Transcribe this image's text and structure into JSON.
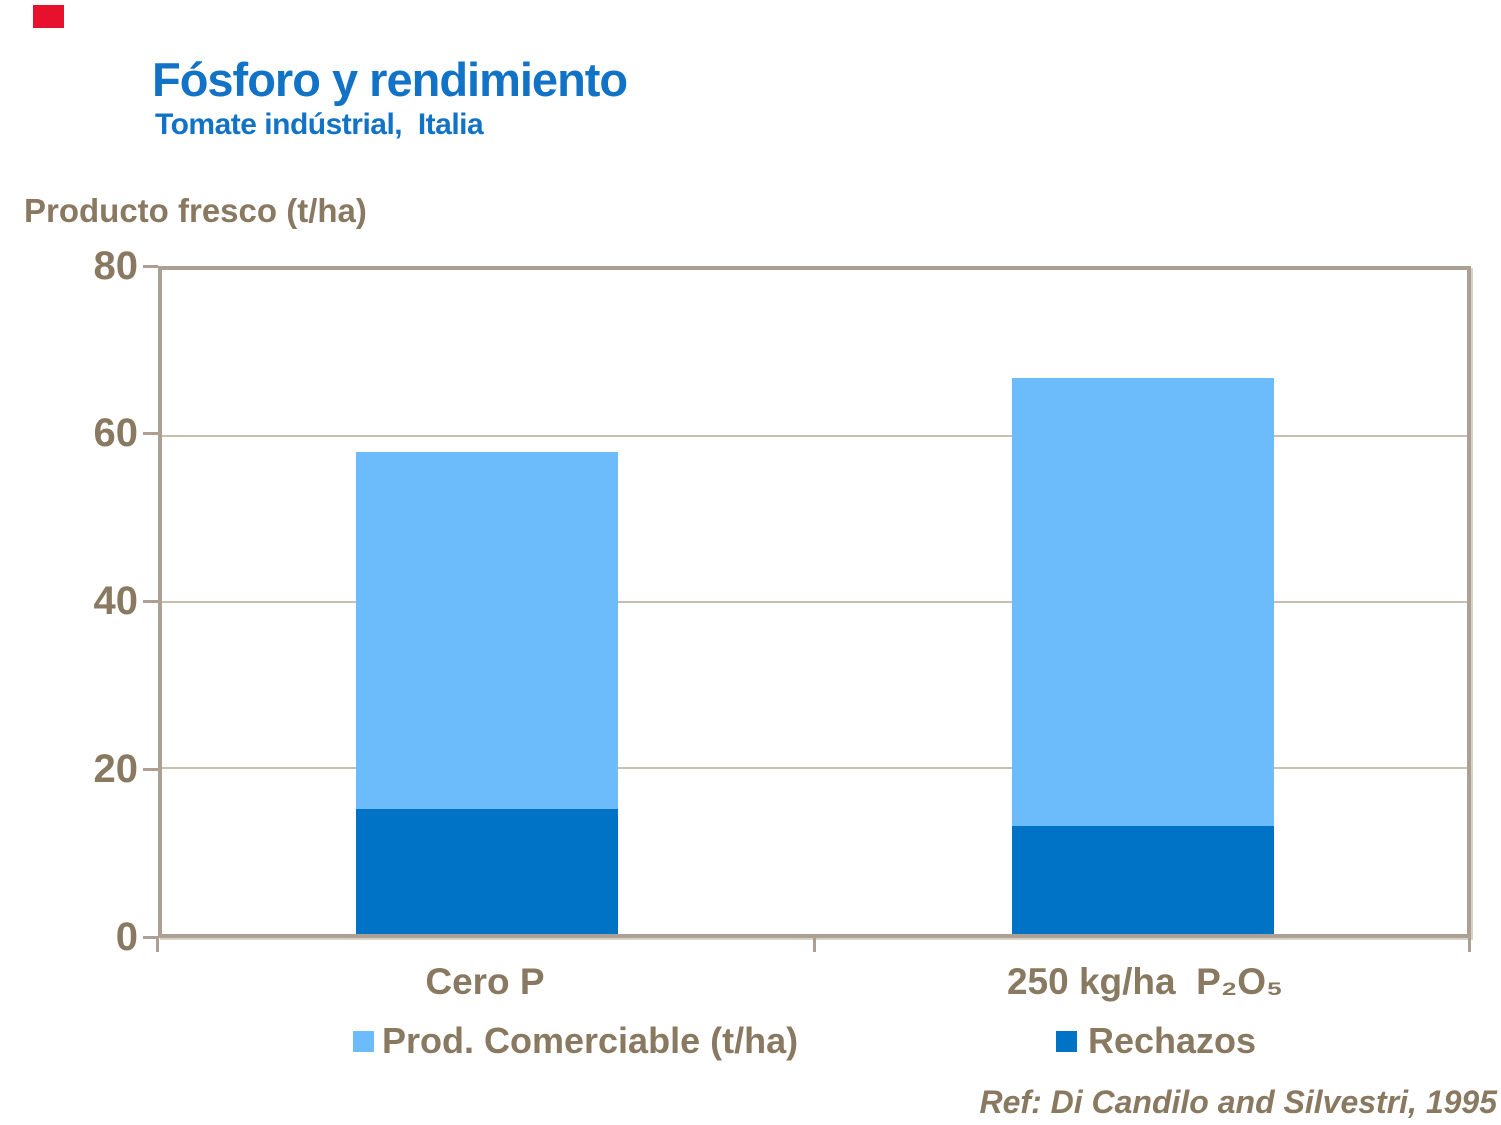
{
  "slide": {
    "title": "Fósforo y rendimiento",
    "subtitle": "Tomate indústrial,  Italia",
    "axis_title": "Producto fresco (t/ha)",
    "reference": "Ref: Di Candilo and Silvestri, 1995"
  },
  "colors": {
    "title_blue": "#1273C6",
    "text_brown": "#8A7961",
    "comerciable_light_blue": "#6CBCFC",
    "rechazos_dark_blue": "#0073C6",
    "axis_frame_tan": "#ABA093",
    "gridline_tan": "#C9BFB1",
    "accent_red": "#E8112D"
  },
  "chart_data": {
    "type": "bar",
    "stacked": true,
    "title": "Fósforo y rendimiento",
    "subtitle": "Tomate indústrial,  Italia",
    "ylabel": "Producto fresco (t/ha)",
    "xlabel": "",
    "ylim": [
      0,
      80
    ],
    "yticks": [
      0,
      20,
      40,
      60,
      80
    ],
    "grid": true,
    "legend_position": "bottom",
    "categories": [
      "Cero P",
      "250 kg/ha  P₂O₅"
    ],
    "series": [
      {
        "name": "Prod. Comerciable (t/ha)",
        "color": "#6CBCFC",
        "values": [
          43,
          54
        ]
      },
      {
        "name": "Rechazos",
        "color": "#0073C6",
        "values": [
          15,
          13
        ]
      }
    ],
    "totals": [
      58,
      67
    ],
    "annotation": "Ref: Di Candilo and Silvestri, 1995"
  },
  "y_axis": {
    "ticks": [
      "80",
      "60",
      "40",
      "20",
      "0"
    ]
  },
  "legend": {
    "items": [
      {
        "label": "Prod. Comerciable (t/ha)",
        "color": "#6CBCFC"
      },
      {
        "label": "Rechazos",
        "color": "#0073C6"
      }
    ]
  }
}
